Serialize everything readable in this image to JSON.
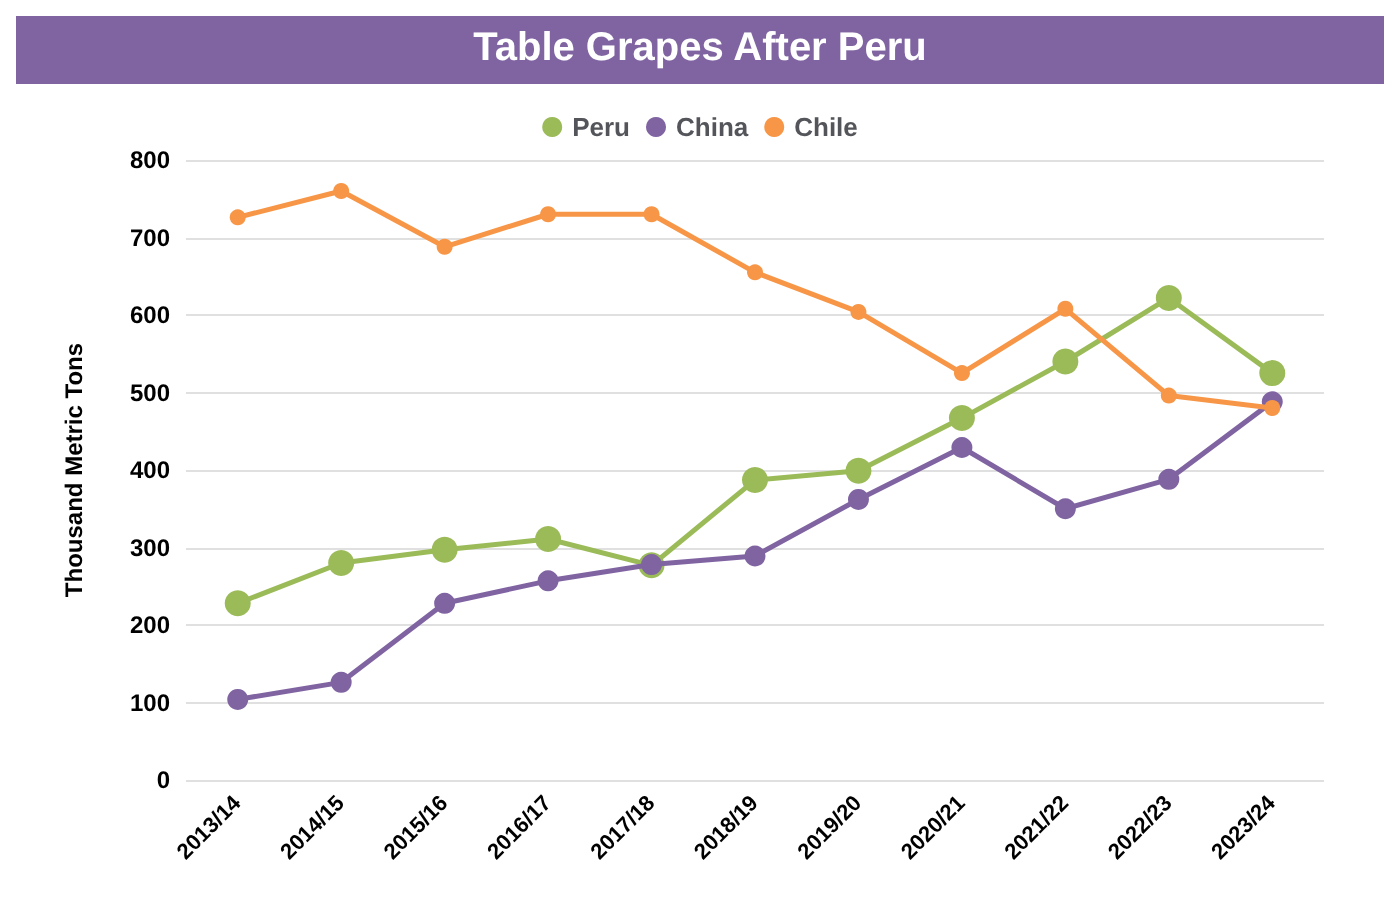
{
  "chart_data": {
    "type": "line",
    "title": "Table Grapes After Peru",
    "ylabel": "Thousand Metric Tons",
    "categories": [
      "2013/14",
      "2014/15",
      "2015/16",
      "2016/17",
      "2017/18",
      "2018/19",
      "2019/20",
      "2020/21",
      "2021/22",
      "2022/23",
      "2023/24"
    ],
    "series": [
      {
        "name": "Peru",
        "color": "#9bbb59",
        "values": [
          228,
          280,
          297,
          311,
          277,
          387,
          399,
          467,
          540,
          622,
          525
        ]
      },
      {
        "name": "China",
        "color": "#8064a2",
        "values": [
          104,
          126,
          228,
          257,
          278,
          289,
          362,
          429,
          350,
          388,
          488
        ]
      },
      {
        "name": "Chile",
        "color": "#f79646",
        "values": [
          726,
          760,
          688,
          730,
          730,
          655,
          604,
          525,
          608,
          496,
          480
        ]
      }
    ],
    "ylim": [
      0,
      800
    ],
    "yticks": [
      0,
      100,
      200,
      300,
      400,
      500,
      600,
      700,
      800
    ],
    "grid": "y",
    "legend": "top",
    "marker": "circle",
    "line_style": "solid"
  }
}
